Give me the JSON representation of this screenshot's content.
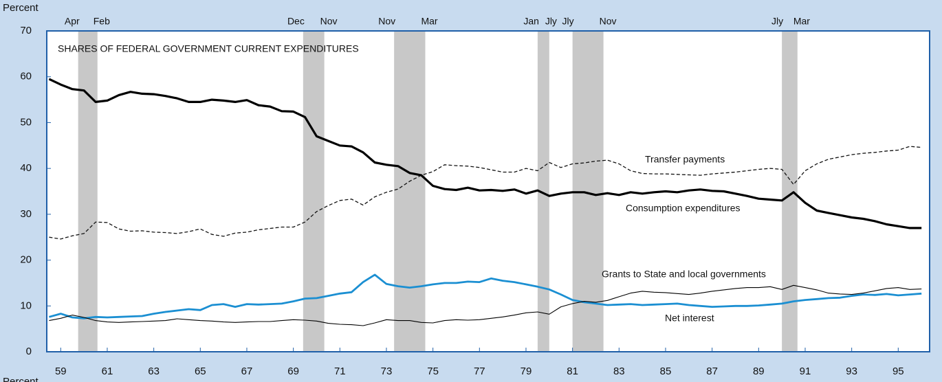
{
  "chart_data": {
    "type": "line",
    "title": "SHARES OF FEDERAL GOVERNMENT CURRENT EXPENDITURES",
    "y_label": "Percent",
    "y_label_bottom": "Percent",
    "xlim": [
      58.9,
      96.85
    ],
    "ylim": [
      0,
      70
    ],
    "yticks": [
      0,
      10,
      20,
      30,
      40,
      50,
      60,
      70
    ],
    "xticks": [
      {
        "value": 59.5,
        "label": "59"
      },
      {
        "value": 61.5,
        "label": "61"
      },
      {
        "value": 63.5,
        "label": "63"
      },
      {
        "value": 65.5,
        "label": "65"
      },
      {
        "value": 67.5,
        "label": "67"
      },
      {
        "value": 69.5,
        "label": "69"
      },
      {
        "value": 71.5,
        "label": "71"
      },
      {
        "value": 73.5,
        "label": "73"
      },
      {
        "value": 75.5,
        "label": "75"
      },
      {
        "value": 77.5,
        "label": "77"
      },
      {
        "value": 79.5,
        "label": "79"
      },
      {
        "value": 81.5,
        "label": "81"
      },
      {
        "value": 83.5,
        "label": "83"
      },
      {
        "value": 85.5,
        "label": "85"
      },
      {
        "value": 87.5,
        "label": "87"
      },
      {
        "value": 89.5,
        "label": "89"
      },
      {
        "value": 91.5,
        "label": "91"
      },
      {
        "value": 93.5,
        "label": "93"
      },
      {
        "value": 95.5,
        "label": "95"
      }
    ],
    "recessions": [
      {
        "start": 60.25,
        "end": 61.08,
        "start_label": "Apr",
        "end_label": "Feb"
      },
      {
        "start": 69.92,
        "end": 70.83,
        "start_label": "Dec",
        "end_label": "Nov"
      },
      {
        "start": 73.83,
        "end": 75.17,
        "start_label": "Nov",
        "end_label": "Mar"
      },
      {
        "start": 80.0,
        "end": 80.5,
        "start_label": "Jan",
        "end_label": "Jly"
      },
      {
        "start": 81.5,
        "end": 82.83,
        "start_label": "Jly",
        "end_label": "Nov"
      },
      {
        "start": 90.5,
        "end": 91.17,
        "start_label": "Jly",
        "end_label": "Mar"
      }
    ],
    "recession_color": "#c8c8c8",
    "x": [
      59.0,
      59.5,
      60.0,
      60.5,
      61.0,
      61.5,
      62.0,
      62.5,
      63.0,
      63.5,
      64.0,
      64.5,
      65.0,
      65.5,
      66.0,
      66.5,
      67.0,
      67.5,
      68.0,
      68.5,
      69.0,
      69.5,
      70.0,
      70.5,
      71.0,
      71.5,
      72.0,
      72.5,
      73.0,
      73.5,
      74.0,
      74.5,
      75.0,
      75.5,
      76.0,
      76.5,
      77.0,
      77.5,
      78.0,
      78.5,
      79.0,
      79.5,
      80.0,
      80.5,
      81.0,
      81.5,
      82.0,
      82.5,
      83.0,
      83.5,
      84.0,
      84.5,
      85.0,
      85.5,
      86.0,
      86.5,
      87.0,
      87.5,
      88.0,
      88.5,
      89.0,
      89.5,
      90.0,
      90.5,
      91.0,
      91.5,
      92.0,
      92.5,
      93.0,
      93.5,
      94.0,
      94.5,
      95.0,
      95.5,
      96.0,
      96.5
    ],
    "series": [
      {
        "name": "Transfer payments",
        "color": "#111111",
        "width": 1.3,
        "dash": true,
        "values": [
          25.0,
          24.6,
          25.3,
          25.8,
          28.3,
          28.2,
          26.8,
          26.3,
          26.4,
          26.1,
          26.0,
          25.8,
          26.2,
          26.8,
          25.6,
          25.2,
          25.9,
          26.1,
          26.6,
          26.9,
          27.2,
          27.2,
          28.3,
          30.6,
          31.9,
          33.0,
          33.3,
          32.0,
          33.8,
          34.8,
          35.5,
          37.2,
          38.5,
          39.3,
          40.8,
          40.6,
          40.5,
          40.2,
          39.7,
          39.2,
          39.2,
          40.0,
          39.5,
          41.3,
          40.2,
          41.0,
          41.2,
          41.6,
          41.8,
          41.0,
          39.5,
          38.9,
          38.8,
          38.8,
          38.7,
          38.6,
          38.5,
          38.8,
          39.0,
          39.2,
          39.5,
          39.8,
          40.0,
          39.8,
          36.5,
          39.5,
          41.0,
          42.0,
          42.5,
          43.0,
          43.3,
          43.5,
          43.8,
          44.0,
          44.8,
          44.6
        ]
      },
      {
        "name": "Consumption expenditures",
        "color": "#000000",
        "width": 3.2,
        "dash": false,
        "values": [
          59.5,
          58.3,
          57.3,
          57.0,
          54.5,
          54.8,
          56.0,
          56.7,
          56.3,
          56.2,
          55.8,
          55.3,
          54.5,
          54.5,
          55.0,
          54.8,
          54.5,
          54.9,
          53.8,
          53.5,
          52.5,
          52.4,
          51.2,
          47.0,
          46.0,
          45.0,
          44.8,
          43.5,
          41.3,
          40.8,
          40.5,
          39.0,
          38.5,
          36.2,
          35.5,
          35.3,
          35.8,
          35.2,
          35.3,
          35.1,
          35.4,
          34.5,
          35.2,
          34.0,
          34.5,
          34.8,
          34.8,
          34.2,
          34.6,
          34.2,
          34.8,
          34.5,
          34.8,
          35.0,
          34.8,
          35.2,
          35.4,
          35.1,
          35.0,
          34.5,
          34.0,
          33.4,
          33.2,
          33.0,
          34.8,
          32.5,
          30.8,
          30.3,
          29.8,
          29.3,
          29.0,
          28.5,
          27.8,
          27.4,
          27.0,
          27.0
        ]
      },
      {
        "name": "Grants to State and local governments",
        "color": "#1b8fd2",
        "width": 2.8,
        "dash": false,
        "values": [
          7.6,
          8.3,
          7.5,
          7.3,
          7.6,
          7.5,
          7.6,
          7.7,
          7.8,
          8.3,
          8.7,
          9.0,
          9.3,
          9.1,
          10.2,
          10.4,
          9.8,
          10.4,
          10.3,
          10.4,
          10.5,
          11.0,
          11.6,
          11.7,
          12.2,
          12.7,
          13.0,
          15.2,
          16.8,
          14.8,
          14.3,
          14.0,
          14.3,
          14.7,
          15.0,
          15.0,
          15.3,
          15.2,
          16.0,
          15.5,
          15.2,
          14.7,
          14.2,
          13.6,
          12.5,
          11.3,
          10.8,
          10.5,
          10.2,
          10.3,
          10.4,
          10.2,
          10.3,
          10.4,
          10.5,
          10.2,
          10.0,
          9.8,
          9.9,
          10.0,
          10.0,
          10.1,
          10.3,
          10.5,
          11.0,
          11.3,
          11.5,
          11.7,
          11.8,
          12.2,
          12.5,
          12.4,
          12.6,
          12.3,
          12.5,
          12.7
        ]
      },
      {
        "name": "Net interest",
        "color": "#000000",
        "width": 1.1,
        "dash": false,
        "values": [
          6.8,
          7.3,
          8.0,
          7.5,
          6.8,
          6.5,
          6.4,
          6.5,
          6.6,
          6.7,
          6.8,
          7.2,
          7.0,
          6.8,
          6.7,
          6.5,
          6.4,
          6.5,
          6.6,
          6.6,
          6.8,
          7.0,
          6.9,
          6.7,
          6.2,
          6.0,
          5.9,
          5.7,
          6.3,
          7.0,
          6.8,
          6.8,
          6.4,
          6.3,
          6.8,
          7.0,
          6.9,
          7.0,
          7.3,
          7.6,
          8.0,
          8.5,
          8.7,
          8.2,
          9.8,
          10.5,
          11.0,
          10.8,
          11.2,
          12.0,
          12.8,
          13.2,
          13.0,
          12.9,
          12.7,
          12.5,
          12.8,
          13.2,
          13.5,
          13.8,
          14.0,
          14.0,
          14.2,
          13.6,
          14.5,
          14.0,
          13.5,
          12.8,
          12.6,
          12.5,
          12.8,
          13.3,
          13.8,
          14.0,
          13.6,
          13.7
        ]
      }
    ]
  }
}
